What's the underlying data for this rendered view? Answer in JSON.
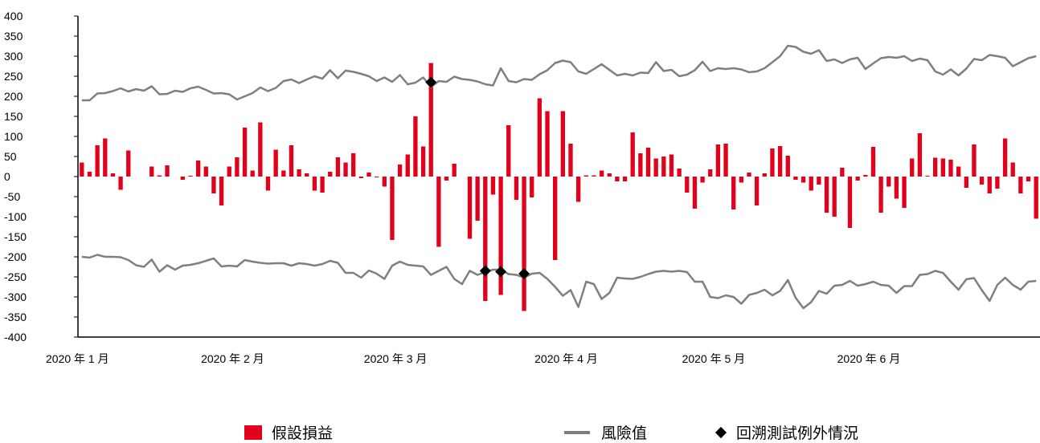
{
  "chart_data": {
    "type": "bar+line",
    "title": "",
    "xlabel": "",
    "ylabel": "",
    "ylim": [
      -400,
      400
    ],
    "yticks": [
      400,
      350,
      300,
      250,
      200,
      150,
      100,
      50,
      0,
      -50,
      -100,
      -150,
      -200,
      -250,
      -300,
      -350,
      -400
    ],
    "x_tick_labels": [
      {
        "label": "2020 年 1 月",
        "index": 0
      },
      {
        "label": "2020 年 2 月",
        "index": 20
      },
      {
        "label": "2020 年 3 月",
        "index": 41
      },
      {
        "label": "2020 年 4 月",
        "index": 63
      },
      {
        "label": "2020 年 5 月",
        "index": 82
      },
      {
        "label": "2020 年 6 月",
        "index": 102
      }
    ],
    "n_days": 124,
    "series": [
      {
        "name": "假設損益",
        "type": "bar",
        "color": "#e2001a",
        "values": [
          35,
          12,
          78,
          95,
          8,
          -33,
          65,
          0,
          0,
          25,
          3,
          28,
          0,
          -8,
          2,
          40,
          25,
          -42,
          -72,
          25,
          48,
          122,
          15,
          135,
          -35,
          67,
          15,
          78,
          18,
          8,
          -35,
          -40,
          12,
          48,
          35,
          58,
          -4,
          10,
          -2,
          -25,
          -158,
          30,
          55,
          150,
          75,
          283,
          -175,
          -10,
          32,
          0,
          -155,
          -110,
          -310,
          -45,
          -295,
          128,
          -58,
          -335,
          -52,
          195,
          163,
          -208,
          163,
          82,
          -63,
          3,
          3,
          15,
          8,
          -12,
          -12,
          110,
          58,
          72,
          45,
          50,
          55,
          20,
          -40,
          -80,
          -15,
          18,
          80,
          82,
          -82,
          -15,
          10,
          -72,
          8,
          70,
          76,
          52,
          -8,
          -15,
          -35,
          -20,
          -90,
          -100,
          22,
          -128,
          -10,
          4,
          74,
          -90,
          -25,
          -55,
          -78,
          45,
          108,
          2,
          47,
          45,
          42,
          25,
          -28,
          80,
          -20,
          -42,
          -30,
          95,
          35,
          -42,
          -12,
          -105
        ]
      },
      {
        "name": "風險值",
        "type": "line",
        "color": "#7f7f7f",
        "values": [
          190,
          190,
          207,
          208,
          213,
          220,
          212,
          218,
          214,
          225,
          205,
          206,
          214,
          211,
          220,
          224,
          216,
          207,
          208,
          205,
          192,
          200,
          208,
          222,
          213,
          221,
          238,
          242,
          233,
          242,
          250,
          244,
          265,
          245,
          264,
          261,
          256,
          250,
          238,
          247,
          236,
          253,
          230,
          234,
          247,
          223,
          238,
          236,
          249,
          243,
          241,
          237,
          230,
          227,
          270,
          238,
          235,
          243,
          241,
          255,
          265,
          283,
          289,
          285,
          262,
          256,
          268,
          280,
          266,
          252,
          256,
          252,
          259,
          258,
          285,
          263,
          266,
          250,
          254,
          265,
          286,
          263,
          270,
          268,
          270,
          267,
          260,
          262,
          270,
          285,
          300,
          326,
          323,
          311,
          306,
          315,
          288,
          292,
          283,
          292,
          296,
          268,
          282,
          295,
          298,
          296,
          300,
          288,
          294,
          290,
          262,
          254,
          267,
          252,
          269,
          293,
          290,
          303,
          300,
          296,
          275,
          285,
          295,
          300
        ],
        "lower_values": [
          -200,
          -202,
          -195,
          -200,
          -200,
          -201,
          -208,
          -221,
          -225,
          -207,
          -237,
          -221,
          -232,
          -222,
          -220,
          -216,
          -210,
          -204,
          -224,
          -222,
          -224,
          -208,
          -212,
          -215,
          -217,
          -216,
          -216,
          -222,
          -216,
          -218,
          -222,
          -218,
          -210,
          -215,
          -240,
          -240,
          -252,
          -234,
          -242,
          -255,
          -222,
          -212,
          -220,
          -222,
          -224,
          -245,
          -235,
          -225,
          -255,
          -268,
          -235,
          -245,
          -238,
          -232,
          -232,
          -243,
          -245,
          -252,
          -242,
          -240,
          -255,
          -275,
          -297,
          -283,
          -325,
          -262,
          -268,
          -305,
          -290,
          -252,
          -254,
          -255,
          -250,
          -243,
          -237,
          -235,
          -237,
          -235,
          -238,
          -262,
          -262,
          -300,
          -303,
          -296,
          -300,
          -317,
          -295,
          -290,
          -282,
          -296,
          -285,
          -258,
          -302,
          -328,
          -313,
          -285,
          -292,
          -272,
          -270,
          -260,
          -272,
          -268,
          -262,
          -270,
          -272,
          -290,
          -273,
          -273,
          -245,
          -243,
          -235,
          -240,
          -262,
          -282,
          -256,
          -253,
          -283,
          -310,
          -270,
          -252,
          -270,
          -282,
          -262,
          -260
        ]
      },
      {
        "name": "回溯測試例外情況",
        "type": "scatter",
        "marker": "diamond",
        "color": "#000000",
        "points": [
          {
            "index": 45,
            "y": 235
          },
          {
            "index": 52,
            "y": -235
          },
          {
            "index": 54,
            "y": -237
          },
          {
            "index": 57,
            "y": -242
          }
        ]
      }
    ],
    "legend_position": "bottom",
    "grid": false
  },
  "legend": {
    "bar_label": "假設損益",
    "line_label": "風險值",
    "marker_label": "回溯測試例外情況"
  }
}
